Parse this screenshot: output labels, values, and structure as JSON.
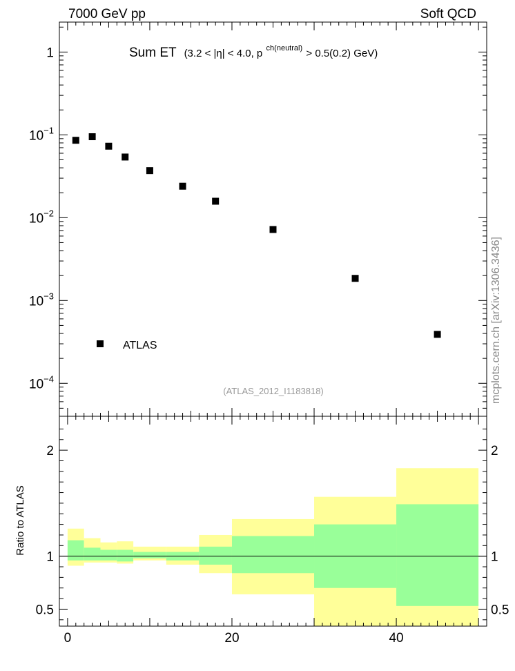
{
  "header": {
    "left": "7000 GeV pp",
    "right": "Soft QCD"
  },
  "side_label": "mcplots.cern.ch [arXiv:1306.3436]",
  "chart_data": [
    {
      "type": "scatter",
      "title_main": "Sum ET",
      "title_cond_a": "(3.2 < |η| < 4.0, p",
      "title_cond_sup": "ch(neutral)",
      "title_cond_b": " > 0.5(0.2) GeV)",
      "watermark": "(ATLAS_2012_I1183818)",
      "log_y": true,
      "xlim": [
        -1,
        51
      ],
      "ylim": [
        4e-05,
        2.3
      ],
      "y_ticks": [
        {
          "value": 1,
          "base": "1",
          "exp": ""
        },
        {
          "value": 0.1,
          "base": "10",
          "exp": "−1"
        },
        {
          "value": 0.01,
          "base": "10",
          "exp": "−2"
        },
        {
          "value": 0.001,
          "base": "10",
          "exp": "−3"
        },
        {
          "value": 0.0001,
          "base": "10",
          "exp": "−4"
        }
      ],
      "legend": {
        "label": "ATLAS",
        "position": "lower-left"
      },
      "series": [
        {
          "name": "ATLAS",
          "marker": "square",
          "color": "#000000",
          "x": [
            1,
            3,
            5,
            7,
            10,
            14,
            18,
            25,
            35,
            45
          ],
          "y": [
            0.086,
            0.095,
            0.073,
            0.054,
            0.037,
            0.024,
            0.0158,
            0.0072,
            0.00185,
            0.00039
          ]
        }
      ]
    },
    {
      "type": "area",
      "ylabel": "Ratio to ATLAS",
      "xlim": [
        -1,
        51
      ],
      "ylim": [
        0.34,
        2.32
      ],
      "x_ticks": [
        0,
        20,
        40
      ],
      "y_ticks": [
        0.5,
        1,
        2
      ],
      "reference_line": 1,
      "colors": {
        "outer_band": "#ffff99",
        "inner_band": "#99ff99"
      },
      "bins": [
        {
          "xlo": 0,
          "xhi": 2,
          "outer": [
            0.91,
            1.26
          ],
          "inner": [
            0.96,
            1.15
          ]
        },
        {
          "xlo": 2,
          "xhi": 4,
          "outer": [
            0.94,
            1.17
          ],
          "inner": [
            0.96,
            1.08
          ]
        },
        {
          "xlo": 4,
          "xhi": 6,
          "outer": [
            0.94,
            1.13
          ],
          "inner": [
            0.96,
            1.06
          ]
        },
        {
          "xlo": 6,
          "xhi": 8,
          "outer": [
            0.93,
            1.14
          ],
          "inner": [
            0.95,
            1.06
          ]
        },
        {
          "xlo": 8,
          "xhi": 12,
          "outer": [
            0.96,
            1.09
          ],
          "inner": [
            0.98,
            1.04
          ]
        },
        {
          "xlo": 12,
          "xhi": 16,
          "outer": [
            0.92,
            1.09
          ],
          "inner": [
            0.96,
            1.04
          ]
        },
        {
          "xlo": 16,
          "xhi": 20,
          "outer": [
            0.84,
            1.2
          ],
          "inner": [
            0.92,
            1.09
          ]
        },
        {
          "xlo": 20,
          "xhi": 30,
          "outer": [
            0.64,
            1.35
          ],
          "inner": [
            0.84,
            1.19
          ]
        },
        {
          "xlo": 30,
          "xhi": 40,
          "outer": [
            0.34,
            1.56
          ],
          "inner": [
            0.7,
            1.3
          ]
        },
        {
          "xlo": 40,
          "xhi": 50,
          "outer": [
            0.34,
            1.83
          ],
          "inner": [
            0.53,
            1.49
          ]
        }
      ]
    }
  ]
}
